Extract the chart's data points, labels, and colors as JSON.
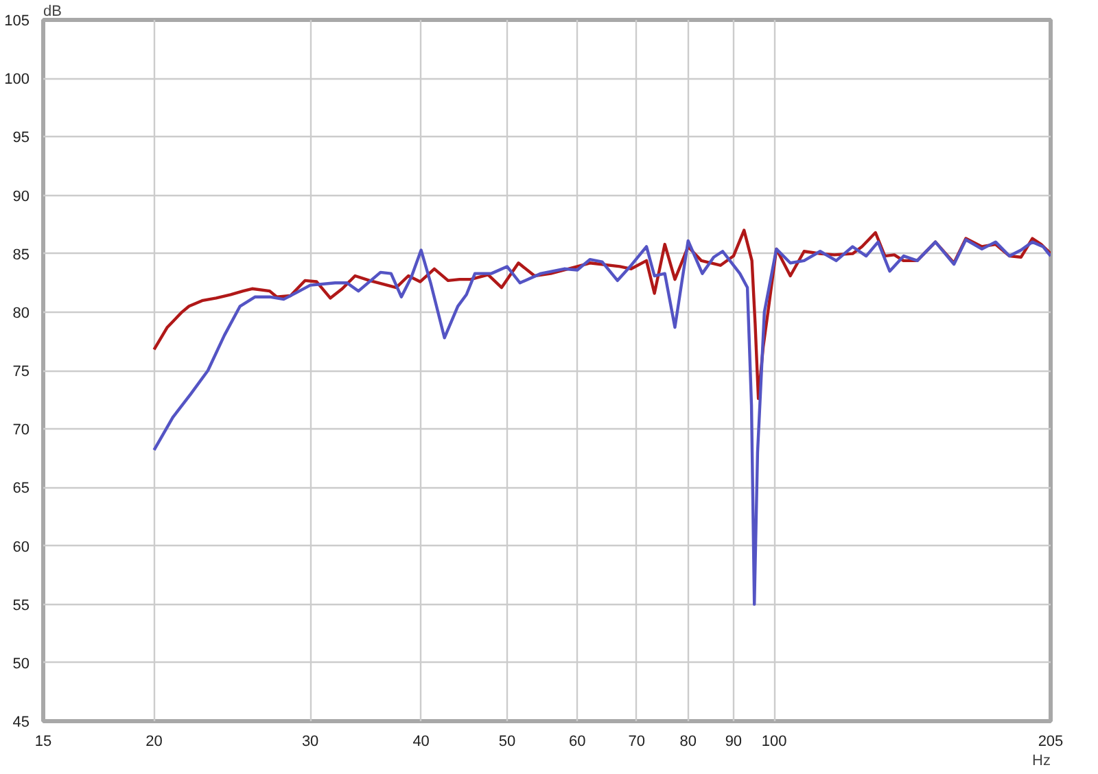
{
  "chart_data": {
    "type": "line",
    "xlabel": "Hz",
    "ylabel": "dB",
    "log": "x",
    "grid": true,
    "marker": "none",
    "line_style": "solid",
    "xlim": [
      15,
      205
    ],
    "ylim": [
      45,
      105
    ],
    "xticks": [
      15,
      20,
      30,
      40,
      50,
      60,
      70,
      80,
      90,
      100,
      205
    ],
    "yticks": [
      45,
      50,
      55,
      60,
      65,
      70,
      75,
      80,
      85,
      90,
      95,
      100,
      105
    ],
    "series": [
      {
        "color": "#b01818",
        "x": [
          20,
          20.7,
          21.5,
          21.9,
          22.7,
          23.5,
          24.4,
          25.2,
          25.8,
          27,
          27.5,
          28.5,
          29.6,
          30.5,
          31.6,
          32.6,
          33.7,
          35,
          36.2,
          37.5,
          38.7,
          39.9,
          41.4,
          42.9,
          44.2,
          45.5,
          47.6,
          49.3,
          51.5,
          53.7,
          56,
          60,
          62,
          67,
          69,
          71.8,
          73.3,
          75.3,
          77.3,
          80,
          82.8,
          87,
          90,
          92.5,
          94.4,
          95.2,
          96,
          97.2,
          98.5,
          100.6,
          104.3,
          108.1,
          112.7,
          116.9,
          122.6,
          125.6,
          130.1,
          133.3,
          136.6,
          139.9,
          145,
          152,
          159.5,
          164.5,
          171.5,
          177.7,
          184.2,
          189.8,
          195.5,
          200,
          205
        ],
        "values": [
          76.8,
          78.7,
          80.0,
          80.5,
          81.0,
          81.2,
          81.5,
          81.8,
          82.0,
          81.8,
          81.3,
          81.4,
          82.7,
          82.6,
          81.2,
          82.0,
          83.1,
          82.7,
          82.4,
          82.1,
          83.1,
          82.6,
          83.7,
          82.7,
          82.8,
          82.8,
          83.2,
          82.1,
          84.2,
          83.1,
          83.3,
          83.9,
          84.2,
          83.9,
          83.7,
          84.4,
          81.6,
          85.8,
          82.8,
          85.6,
          84.4,
          84.0,
          84.8,
          87.0,
          84.4,
          79.0,
          72.6,
          77.0,
          80.2,
          85.4,
          83.1,
          85.2,
          85.0,
          84.9,
          85.0,
          85.6,
          86.8,
          84.8,
          84.9,
          84.4,
          84.4,
          86.0,
          84.2,
          86.3,
          85.6,
          85.8,
          84.8,
          84.7,
          86.3,
          85.8,
          85.0
        ]
      },
      {
        "color": "#5454c4",
        "x": [
          20,
          21,
          22,
          23,
          24,
          25,
          26,
          27,
          28,
          29,
          30,
          32,
          33,
          34,
          36,
          37,
          38,
          39,
          40,
          41,
          42.5,
          44,
          45,
          46,
          48,
          50,
          51.7,
          54.6,
          58,
          60,
          62,
          64,
          66.6,
          69,
          71.8,
          73.3,
          75.3,
          77.3,
          80,
          83,
          85.5,
          87.5,
          90,
          91.5,
          93.3,
          94.3,
          95,
          95.8,
          97.5,
          100.6,
          104.3,
          108.1,
          112.7,
          117.5,
          122.6,
          127,
          131,
          135,
          140,
          145,
          152,
          159.5,
          164.5,
          171.5,
          177.7,
          184.2,
          189.8,
          195.5,
          201,
          205
        ],
        "values": [
          68.2,
          71.0,
          73.0,
          75.0,
          78.0,
          80.5,
          81.3,
          81.3,
          81.1,
          81.7,
          82.3,
          82.5,
          82.5,
          81.8,
          83.4,
          83.3,
          81.3,
          83.0,
          85.3,
          82.5,
          77.8,
          80.5,
          81.5,
          83.3,
          83.3,
          83.9,
          82.5,
          83.3,
          83.7,
          83.6,
          84.5,
          84.3,
          82.7,
          84.0,
          85.6,
          83.1,
          83.3,
          78.7,
          86.1,
          83.3,
          84.7,
          85.2,
          84.0,
          83.3,
          82.1,
          72.0,
          55.0,
          68.0,
          80.0,
          85.4,
          84.2,
          84.4,
          85.2,
          84.4,
          85.6,
          84.8,
          86.0,
          83.5,
          84.8,
          84.4,
          86.0,
          84.1,
          86.2,
          85.4,
          86.0,
          84.8,
          85.3,
          86.0,
          85.6,
          84.8
        ]
      }
    ]
  }
}
